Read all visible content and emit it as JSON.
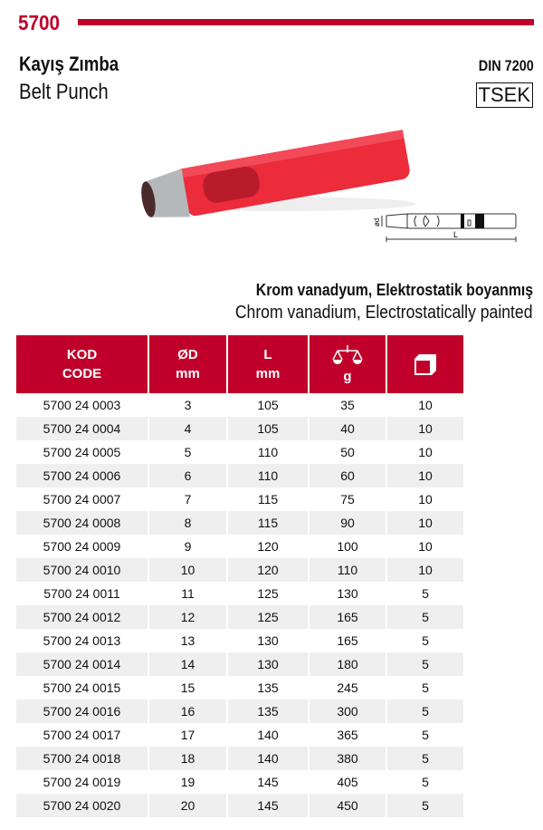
{
  "header": {
    "code": "5700",
    "title_tr": "Kayış Zımba",
    "title_en": "Belt Punch",
    "standard": "DIN 7200",
    "cert": "TSEK"
  },
  "drawing": {
    "dim_d": "ød",
    "dim_l": "L"
  },
  "material": {
    "tr": "Krom vanadyum, Elektrostatik boyanmış",
    "en": "Chrom vanadium, Electrostatically painted"
  },
  "colors": {
    "accent": "#c0002a",
    "row_alt": "#efefef"
  },
  "table": {
    "headers": [
      {
        "l1": "KOD",
        "l2": "CODE"
      },
      {
        "l1": "ØD",
        "l2": "mm"
      },
      {
        "l1": "L",
        "l2": "mm"
      },
      {
        "icon": "scale-icon",
        "l2": "g"
      },
      {
        "icon": "box-icon"
      }
    ],
    "rows": [
      [
        "5700 24 0003",
        "3",
        "105",
        "35",
        "10"
      ],
      [
        "5700 24 0004",
        "4",
        "105",
        "40",
        "10"
      ],
      [
        "5700 24 0005",
        "5",
        "110",
        "50",
        "10"
      ],
      [
        "5700 24 0006",
        "6",
        "110",
        "60",
        "10"
      ],
      [
        "5700 24 0007",
        "7",
        "115",
        "75",
        "10"
      ],
      [
        "5700 24 0008",
        "8",
        "115",
        "90",
        "10"
      ],
      [
        "5700 24 0009",
        "9",
        "120",
        "100",
        "10"
      ],
      [
        "5700 24 0010",
        "10",
        "120",
        "110",
        "10"
      ],
      [
        "5700 24 0011",
        "11",
        "125",
        "130",
        "5"
      ],
      [
        "5700 24 0012",
        "12",
        "125",
        "165",
        "5"
      ],
      [
        "5700 24 0013",
        "13",
        "130",
        "165",
        "5"
      ],
      [
        "5700 24 0014",
        "14",
        "130",
        "180",
        "5"
      ],
      [
        "5700 24 0015",
        "15",
        "135",
        "245",
        "5"
      ],
      [
        "5700 24 0016",
        "16",
        "135",
        "300",
        "5"
      ],
      [
        "5700 24 0017",
        "17",
        "140",
        "365",
        "5"
      ],
      [
        "5700 24 0018",
        "18",
        "140",
        "380",
        "5"
      ],
      [
        "5700 24 0019",
        "19",
        "145",
        "405",
        "5"
      ],
      [
        "5700 24 0020",
        "20",
        "145",
        "450",
        "5"
      ]
    ]
  }
}
